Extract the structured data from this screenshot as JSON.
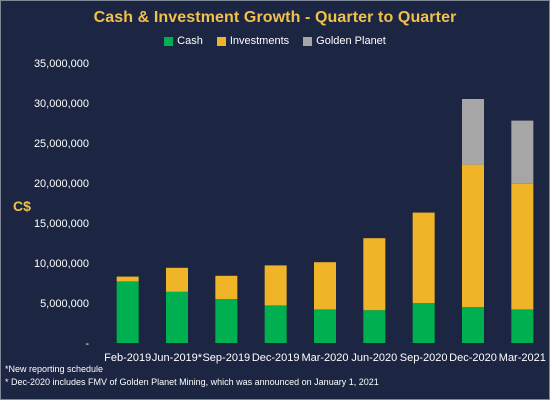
{
  "chart_data": {
    "type": "bar",
    "stacked": true,
    "title": "Cash & Investment Growth - Quarter to Quarter",
    "ylabel": "C$",
    "xlabel": "",
    "ylim": [
      0,
      35000000
    ],
    "yticks": [
      "-",
      "5,000,000",
      "10,000,000",
      "15,000,000",
      "20,000,000",
      "25,000,000",
      "30,000,000",
      "35,000,000"
    ],
    "categories": [
      "Feb-2019",
      "Jun-2019*",
      "Sep-2019",
      "Dec-2019",
      "Mar-2020",
      "Jun-2020",
      "Sep-2020",
      "Dec-2020",
      "Mar-2021"
    ],
    "series": [
      {
        "name": "Cash",
        "color": "#00b050",
        "values": [
          7700000,
          6400000,
          5500000,
          4700000,
          4200000,
          4100000,
          5000000,
          4500000,
          4200000
        ]
      },
      {
        "name": "Investments",
        "color": "#f0b429",
        "values": [
          600000,
          3000000,
          2900000,
          5000000,
          5900000,
          9000000,
          11300000,
          17800000,
          15700000
        ]
      },
      {
        "name": "Golden Planet",
        "color": "#a6a6a6",
        "values": [
          0,
          0,
          0,
          0,
          0,
          0,
          0,
          8200000,
          7900000
        ]
      }
    ],
    "grid": false,
    "legend_position": "top"
  },
  "footnotes": [
    "*New reporting schedule",
    "* Dec-2020 includes FMV of Golden Planet Mining, which was announced on January 1, 2021"
  ]
}
